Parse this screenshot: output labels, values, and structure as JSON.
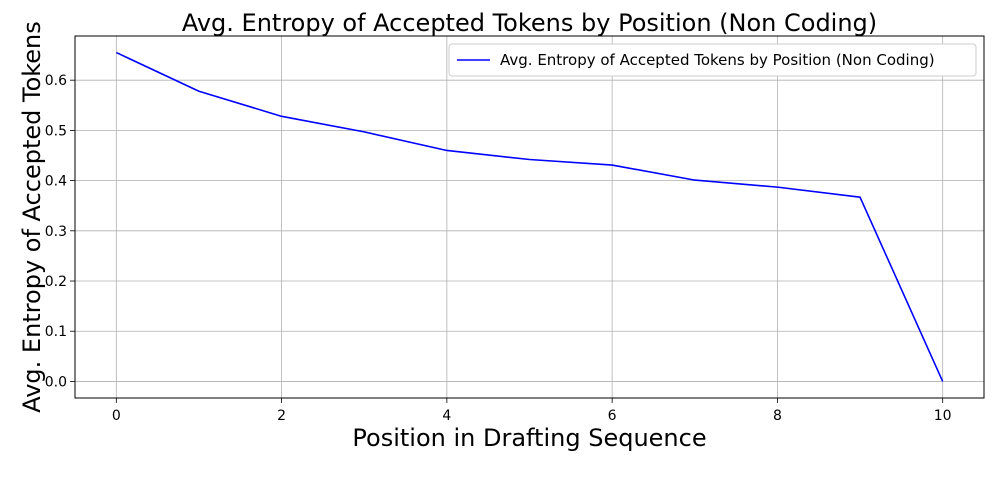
{
  "chart_data": {
    "type": "line",
    "title": "Avg. Entropy of Accepted Tokens by Position (Non Coding)",
    "xlabel": "Position in Drafting Sequence",
    "ylabel": "Avg. Entropy of Accepted Tokens",
    "xlim": [
      -0.5,
      10.5
    ],
    "ylim": [
      -0.033,
      0.688
    ],
    "xticks": [
      0,
      2,
      4,
      6,
      8,
      10
    ],
    "yticks": [
      0.0,
      0.1,
      0.2,
      0.3,
      0.4,
      0.5,
      0.6
    ],
    "grid": true,
    "legend_position": "top-right",
    "series": [
      {
        "name": "Avg. Entropy of Accepted Tokens by Position (Non Coding)",
        "color": "#0000ff",
        "x": [
          0,
          1,
          2,
          3,
          4,
          5,
          6,
          7,
          8,
          9,
          10
        ],
        "y": [
          0.655,
          0.578,
          0.528,
          0.497,
          0.46,
          0.442,
          0.431,
          0.401,
          0.387,
          0.367,
          0.0
        ]
      }
    ]
  }
}
